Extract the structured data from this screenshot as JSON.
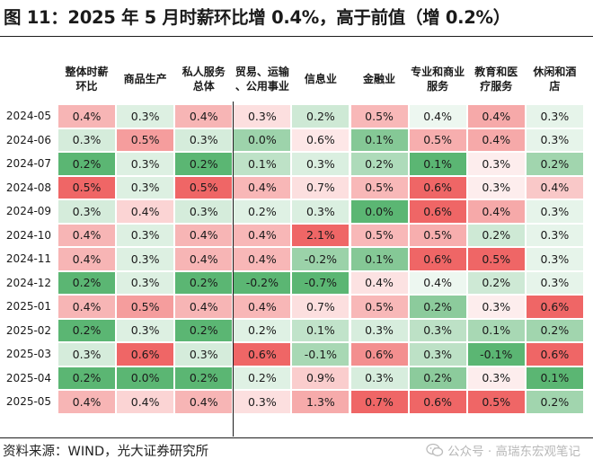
{
  "title": "图 11：2025 年 5 月时薪环比增 0.4%，高于前值（增 0.2%）",
  "source": "资料来源：WIND，光大证券研究所",
  "watermark": "公众号 · 高瑞东宏观笔记",
  "colors": {
    "positive": "#ee5a5a",
    "negative": "#4fb068"
  },
  "chart_data": {
    "type": "table",
    "unit": "%",
    "columns": [
      "整体时薪环比",
      "商品生产",
      "私人服务总体",
      "贸易、运输、公用事业",
      "信息业",
      "金融业",
      "专业和商业服务",
      "教育和医疗服务",
      "休闲和酒店"
    ],
    "column_labels": [
      [
        "整体时薪",
        "环比"
      ],
      [
        "商品生产"
      ],
      [
        "私人服务",
        "总体"
      ],
      [
        "贸易、运输",
        "、公用事业"
      ],
      [
        "信息业"
      ],
      [
        "金融业"
      ],
      [
        "专业和商业",
        "服务"
      ],
      [
        "教育和医",
        "疗服务"
      ],
      [
        "休闲和酒",
        "店"
      ]
    ],
    "rows": [
      "2024-05",
      "2024-06",
      "2024-07",
      "2024-08",
      "2024-09",
      "2024-10",
      "2024-11",
      "2024-12",
      "2025-01",
      "2025-02",
      "2025-03",
      "2025-04",
      "2025-05"
    ],
    "values": [
      [
        0.4,
        0.3,
        0.4,
        0.3,
        0.2,
        0.5,
        0.4,
        0.4,
        0.3
      ],
      [
        0.3,
        0.5,
        0.3,
        0.0,
        0.6,
        0.1,
        0.5,
        0.4,
        0.3
      ],
      [
        0.2,
        0.3,
        0.2,
        0.1,
        0.3,
        0.2,
        0.1,
        0.3,
        0.2
      ],
      [
        0.5,
        0.3,
        0.5,
        0.4,
        0.7,
        0.5,
        0.6,
        0.3,
        0.4
      ],
      [
        0.3,
        0.4,
        0.3,
        0.2,
        0.3,
        0.0,
        0.6,
        0.4,
        0.3
      ],
      [
        0.4,
        0.3,
        0.4,
        0.4,
        2.1,
        0.5,
        0.5,
        0.2,
        0.3
      ],
      [
        0.4,
        0.3,
        0.4,
        0.4,
        -0.2,
        0.1,
        0.6,
        0.5,
        0.3
      ],
      [
        0.2,
        0.3,
        0.2,
        -0.2,
        -0.7,
        0.4,
        0.4,
        0.2,
        0.3
      ],
      [
        0.4,
        0.5,
        0.4,
        0.4,
        0.7,
        0.5,
        0.2,
        0.3,
        0.6
      ],
      [
        0.2,
        0.3,
        0.2,
        0.2,
        0.1,
        0.3,
        0.3,
        0.1,
        0.2
      ],
      [
        0.3,
        0.6,
        0.3,
        0.6,
        -0.1,
        0.6,
        0.3,
        -0.1,
        0.6
      ],
      [
        0.2,
        0.0,
        0.2,
        0.2,
        0.9,
        0.3,
        0.2,
        0.3,
        0.1
      ],
      [
        0.4,
        0.4,
        0.4,
        0.3,
        1.3,
        0.7,
        0.6,
        0.5,
        0.2
      ]
    ]
  }
}
